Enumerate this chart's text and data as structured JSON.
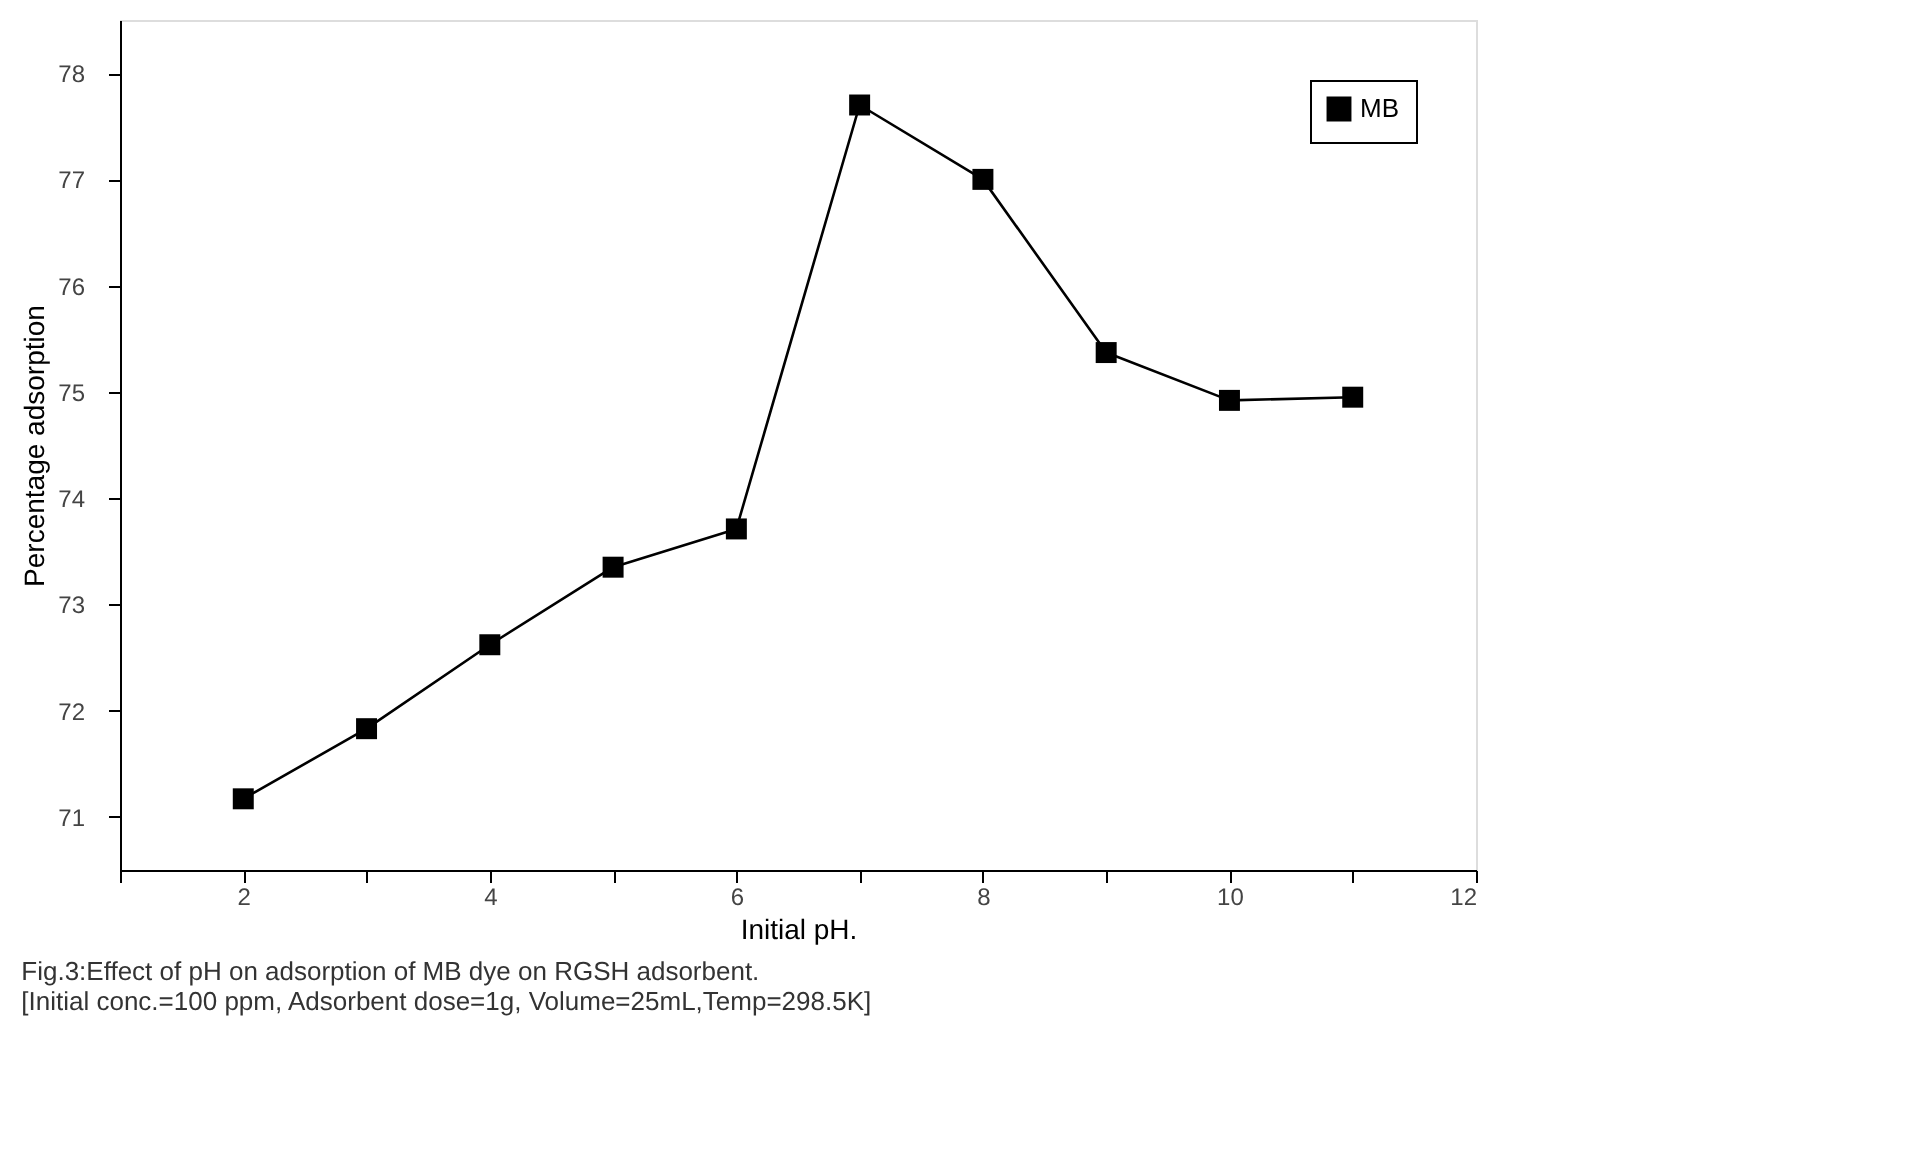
{
  "chart_data": {
    "type": "line",
    "xlabel": "Initial pH.",
    "ylabel": "Percentage adsorption",
    "x": [
      2,
      3,
      4,
      5,
      6,
      7,
      8,
      9,
      10,
      11
    ],
    "series": [
      {
        "name": "MB",
        "color": "#000000",
        "values": [
          71.17,
          71.83,
          72.62,
          73.35,
          73.71,
          77.7,
          77.0,
          75.37,
          74.92,
          74.95
        ]
      }
    ],
    "xlim": [
      1,
      12
    ],
    "xticks": [
      {
        "value": 1,
        "label": null
      },
      2,
      {
        "value": 3,
        "label": null
      },
      4,
      {
        "value": 5,
        "label": null
      },
      6,
      {
        "value": 7,
        "label": null
      },
      8,
      {
        "value": 9,
        "label": null
      },
      10,
      {
        "value": 11,
        "label": null
      },
      12
    ],
    "ylim": [
      70.5,
      78.5
    ],
    "yticks": [
      71,
      72,
      73,
      74,
      75,
      76,
      77,
      78
    ],
    "marker": "square",
    "line_style": "solid",
    "grid": false,
    "legend": "top right",
    "annotations": [
      "Fig.3:Effect of pH on adsorption of MB dye on RGSH adsorbent.",
      "[Initial conc.=100 ppm, Adsorbent dose=1g, Volume=25mL,Temp=298.5K]"
    ]
  }
}
